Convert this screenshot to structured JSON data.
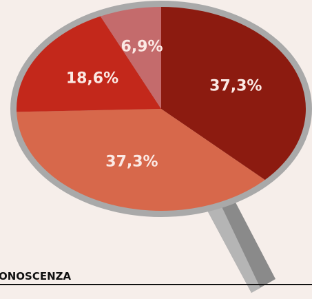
{
  "chart_data": {
    "type": "pie",
    "values": [
      37.3,
      37.3,
      18.6,
      6.9
    ],
    "value_labels": [
      "37,3%",
      "37,3%",
      "18,6%",
      "6,9%"
    ],
    "colors": [
      "#8c1b10",
      "#d7684b",
      "#c3281b",
      "#c46b6c"
    ]
  },
  "footer_text": "ONOSCENZA"
}
